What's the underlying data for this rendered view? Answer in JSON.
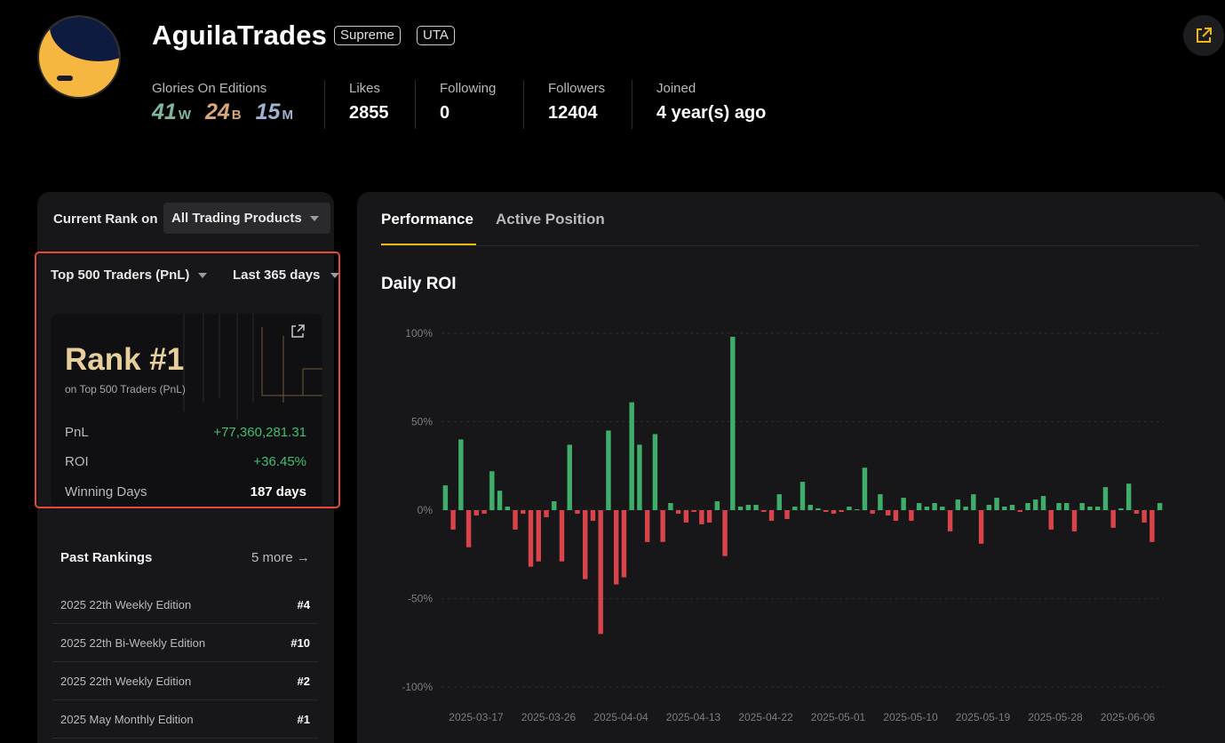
{
  "profile": {
    "username": "AguilaTrades",
    "badges": [
      "Supreme",
      "UTA"
    ],
    "glories_label": "Glories On Editions",
    "glories": [
      {
        "count": "41",
        "tier": "W",
        "color": "#7fb89a"
      },
      {
        "count": "24",
        "tier": "B",
        "color": "#d6a77a"
      },
      {
        "count": "15",
        "tier": "M",
        "color": "#9fb2cf"
      }
    ],
    "likes_label": "Likes",
    "likes": "2855",
    "following_label": "Following",
    "following": "0",
    "followers_label": "Followers",
    "followers": "12404",
    "joined_label": "Joined",
    "joined": "4 year(s) ago"
  },
  "rank_panel": {
    "current_rank_label": "Current Rank on",
    "product_select": "All Trading Products",
    "board_filter": "Top 500 Traders (PnL)",
    "period_filter": "Last 365 days",
    "rank_title": "Rank #1",
    "rank_subtitle": "on Top 500 Traders (PnL)",
    "pnl_label": "PnL",
    "pnl": "+77,360,281.31",
    "roi_label": "ROI",
    "roi": "+36.45%",
    "winning_days_label": "Winning Days",
    "winning_days": "187 days"
  },
  "past_rankings": {
    "title": "Past Rankings",
    "more": "5 more →",
    "items": [
      {
        "edition": "2025 22th Weekly Edition",
        "rank": "#4"
      },
      {
        "edition": "2025 22th Bi-Weekly Edition",
        "rank": "#10"
      },
      {
        "edition": "2025 22th Weekly Edition",
        "rank": "#2"
      },
      {
        "edition": "2025 May Monthly Edition",
        "rank": "#1"
      }
    ]
  },
  "tabs": {
    "performance": "Performance",
    "active_position": "Active Position"
  },
  "chart_title": "Daily ROI",
  "colors": {
    "positive": "#3fae6a",
    "negative": "#d9434a",
    "accent": "#f0b90b"
  },
  "chart_data": {
    "type": "bar",
    "title": "Daily ROI",
    "y_unit": "%",
    "ylim": [
      -100,
      100
    ],
    "yticks": [
      "100%",
      "50%",
      "0%",
      "-50%",
      "-100%"
    ],
    "ytick_values": [
      100,
      50,
      0,
      -50,
      -100
    ],
    "xticks": [
      "2025-03-17",
      "2025-03-26",
      "2025-04-04",
      "2025-04-13",
      "2025-04-22",
      "2025-05-01",
      "2025-05-10",
      "2025-05-19",
      "2025-05-28",
      "2025-06-06"
    ],
    "grid": true,
    "values": [
      14,
      -11,
      40,
      -21,
      -3,
      -2,
      22,
      11,
      2,
      -11,
      -2,
      -32,
      -29,
      -4,
      5,
      -29,
      37,
      -2,
      -39,
      -6,
      -70,
      45,
      -42,
      -38,
      61,
      37,
      -18,
      43,
      -18,
      4,
      -2,
      -7,
      -1,
      -8,
      -7,
      5,
      -26,
      98,
      2,
      3,
      3,
      -1,
      -6,
      9,
      -5,
      2,
      16,
      3,
      1,
      -1,
      -2,
      -1,
      2,
      0,
      24,
      -2,
      9,
      -3,
      -6,
      7,
      -6,
      4,
      2,
      4,
      2,
      -12,
      6,
      2,
      9,
      -19,
      3,
      7,
      2,
      3,
      -1,
      4,
      6,
      8,
      -11,
      4,
      4,
      -12,
      4,
      2,
      2,
      13,
      -10,
      1,
      15,
      -2,
      -7,
      -18,
      4
    ]
  }
}
